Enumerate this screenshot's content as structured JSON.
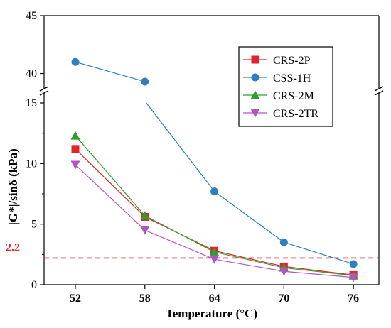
{
  "chart_data": {
    "type": "line",
    "xlabel": "Temperature (°C)",
    "ylabel": "|G*|/sinδ  (kPa)",
    "x": [
      52,
      58,
      64,
      70,
      76
    ],
    "x_tick_labels": [
      "52",
      "58",
      "64",
      "70",
      "76"
    ],
    "y_tick_labels_lower": [
      "0",
      "5",
      "10",
      "15"
    ],
    "y_tick_labels_upper": [
      "40",
      "45"
    ],
    "y_axis_break": {
      "lower_segment": [
        0,
        15
      ],
      "upper_segment": [
        38.5,
        45
      ]
    },
    "reference_line": {
      "value": 2.2,
      "label": "2.2",
      "color": "#e0242a",
      "style": "dashed"
    },
    "legend_position": "top-right",
    "series": [
      {
        "name": "CRS-2P",
        "marker": "square",
        "color": "#e0242a",
        "values": [
          11.2,
          5.6,
          2.8,
          1.5,
          0.8
        ]
      },
      {
        "name": "CSS-1H",
        "marker": "circle",
        "color": "#2e7fbf",
        "values": [
          41.0,
          39.3,
          7.7,
          3.5,
          1.7
        ]
      },
      {
        "name": "CRS-2M",
        "marker": "triangle-up",
        "color": "#2ca02c",
        "values": [
          12.3,
          5.7,
          2.7,
          1.4,
          0.75
        ]
      },
      {
        "name": "CRS-2TR",
        "marker": "triangle-down",
        "color": "#b056c0",
        "values": [
          9.9,
          4.5,
          2.1,
          1.1,
          0.6
        ]
      }
    ],
    "grid": false
  }
}
